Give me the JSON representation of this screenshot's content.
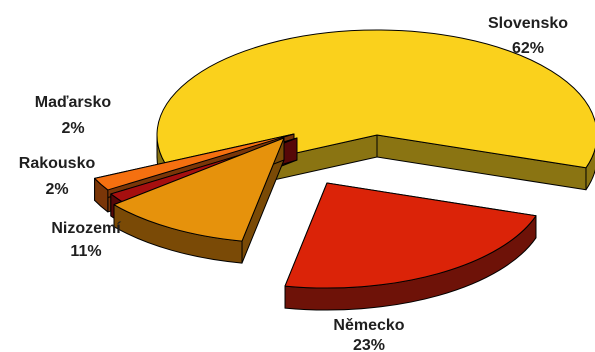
{
  "chart_data": {
    "type": "pie",
    "style": "3d-exploded",
    "title": "",
    "slices": [
      {
        "label": "Slovensko",
        "value": 62,
        "value_label": "62%",
        "color": "#FAD11C",
        "side_color": "#8A7412"
      },
      {
        "label": "Německo",
        "value": 23,
        "value_label": "23%",
        "color": "#DB2308",
        "side_color": "#6E1208"
      },
      {
        "label": "Nizozemí",
        "value": 11,
        "value_label": "11%",
        "color": "#E6920C",
        "side_color": "#7A4A06"
      },
      {
        "label": "Rakousko",
        "value": 2,
        "value_label": "2%",
        "color": "#A60F0F",
        "side_color": "#560808"
      },
      {
        "label": "Maďarsko",
        "value": 2,
        "value_label": "2%",
        "color": "#F57010",
        "side_color": "#7A3608"
      }
    ],
    "legend": "none"
  }
}
